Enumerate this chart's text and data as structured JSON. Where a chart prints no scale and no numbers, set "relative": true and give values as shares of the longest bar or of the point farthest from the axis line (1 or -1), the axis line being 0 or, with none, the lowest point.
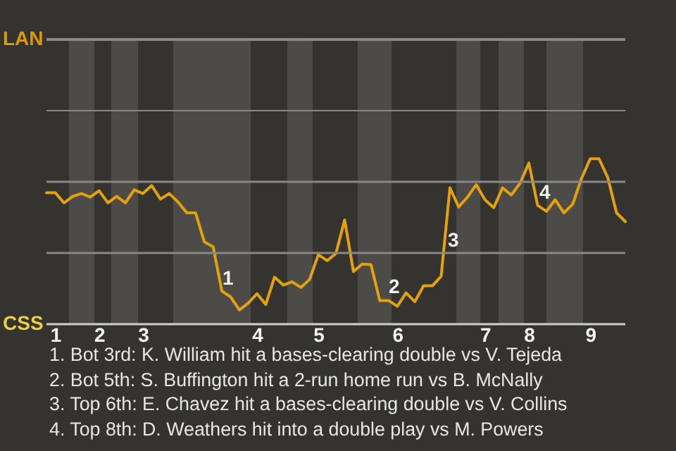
{
  "chart_data": {
    "type": "line",
    "relative": true,
    "categories": [
      null,
      "1",
      null,
      null,
      null,
      null,
      "2",
      null,
      null,
      null,
      null,
      "3",
      null,
      null,
      null,
      null,
      null,
      null,
      null,
      null,
      null,
      null,
      null,
      null,
      "4",
      null,
      null,
      null,
      null,
      null,
      null,
      "5",
      null,
      null,
      null,
      null,
      null,
      null,
      null,
      null,
      "6",
      null,
      null,
      null,
      null,
      null,
      null,
      null,
      null,
      null,
      "7",
      null,
      null,
      null,
      null,
      "8",
      null,
      null,
      null,
      null,
      null,
      null,
      "9",
      null,
      null,
      null,
      null
    ],
    "series": [
      {
        "color": "#e3a20b",
        "values": [
          0.795,
          0.795,
          0.733,
          0.773,
          0.79,
          0.768,
          0.807,
          0.733,
          0.773,
          0.733,
          0.812,
          0.79,
          0.838,
          0.756,
          0.79,
          0.738,
          0.673,
          0.673,
          0.497,
          0.468,
          0.2,
          0.165,
          0.086,
          0.127,
          0.184,
          0.119,
          0.284,
          0.236,
          0.256,
          0.222,
          0.27,
          0.42,
          0.384,
          0.427,
          0.63,
          0.318,
          0.363,
          0.36,
          0.143,
          0.143,
          0.108,
          0.189,
          0.136,
          0.232,
          0.232,
          0.289,
          0.824,
          0.709,
          0.768,
          0.843,
          0.752,
          0.704,
          0.824,
          0.781,
          0.852,
          0.974,
          0.718,
          0.682,
          0.752,
          0.673,
          0.725,
          0.88,
          1,
          1,
          0.886,
          0.673,
          0.62
        ]
      }
    ],
    "ref_lines": [
      {
        "axis": "y",
        "value": 0.43,
        "color": "#8a8886"
      },
      {
        "axis": "y",
        "value": 0.861,
        "color": "#8a8886"
      }
    ],
    "annotations": [
      "1",
      "2",
      "3",
      "4",
      "LAN",
      "CSS",
      "1. Bot 3rd: K. William hit a bases-clearing double vs V. Tejeda",
      "2. Bot 5th: S. Buffington hit a 2-run home run vs B. McNally",
      "3. Top 6th: E. Chavez hit a bases-clearing double vs V. Collins",
      "4. Top 8th: D. Weathers hit into a double play vs M. Powers"
    ]
  }
}
